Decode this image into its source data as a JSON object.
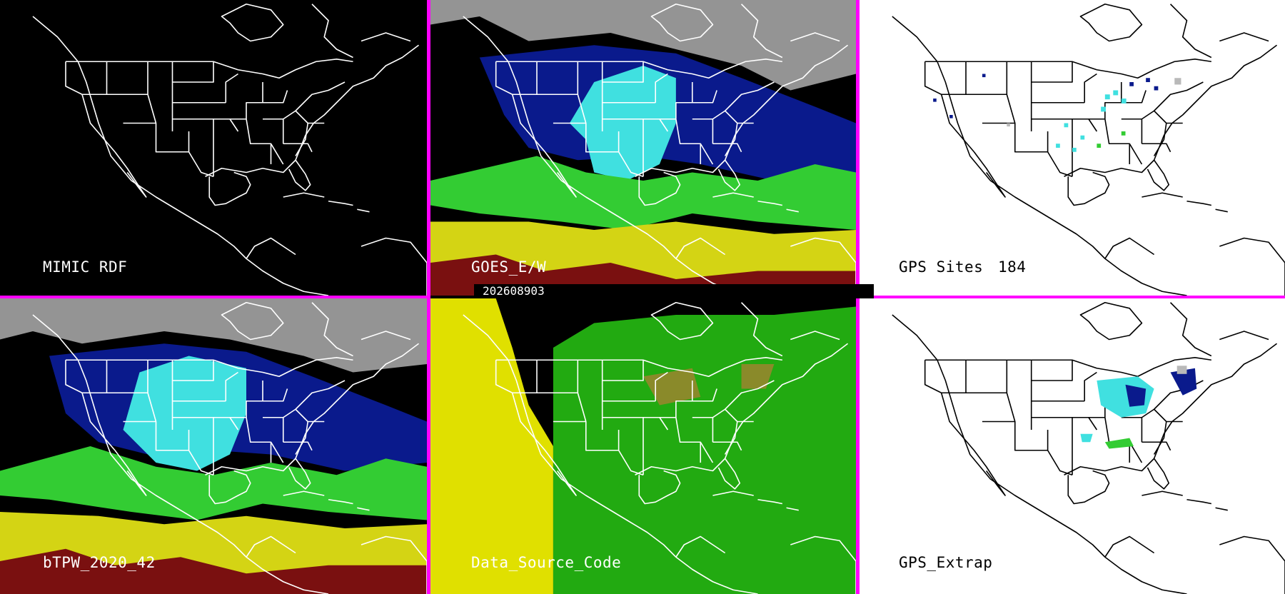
{
  "timestamp": "202608903",
  "colors": {
    "divider": "#ff00ff",
    "cloud_gray": "#b9b9b9",
    "dark_blue": "#0a1a8c",
    "cyan": "#40e0e0",
    "green": "#33cc33",
    "yellow": "#d4d414",
    "dark_red": "#7a1010",
    "source_yellow": "#e0e000",
    "source_green": "#22aa11",
    "source_olive": "#8a8a2a"
  },
  "panels": [
    {
      "id": "mimic-rdf",
      "label": "MIMIC RDF",
      "background": "black"
    },
    {
      "id": "goes",
      "label": "GOES_E/W",
      "background": "black"
    },
    {
      "id": "gps-sites",
      "label": "GPS Sites",
      "count": "184",
      "background": "white"
    },
    {
      "id": "btpw",
      "label": "bTPW_2020_42",
      "background": "black"
    },
    {
      "id": "data-source",
      "label": "Data_Source_Code",
      "background": "black"
    },
    {
      "id": "gps-extrap",
      "label": "GPS_Extrap",
      "background": "white"
    }
  ]
}
